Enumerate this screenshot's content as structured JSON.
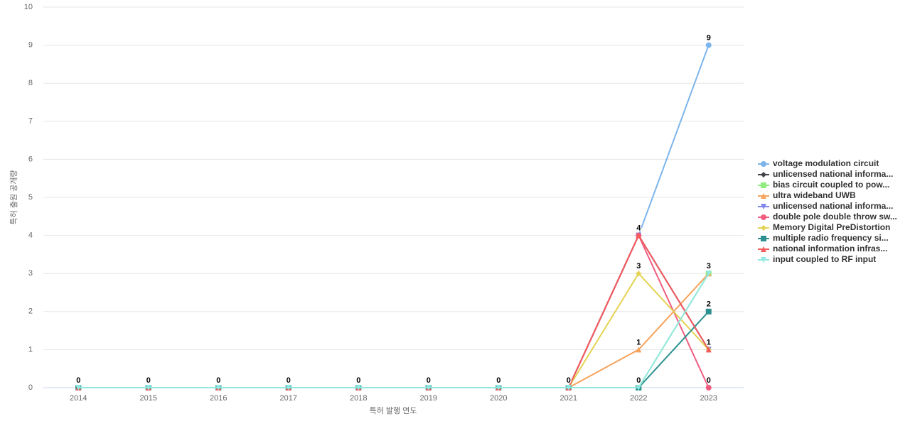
{
  "chart_data": {
    "type": "line",
    "x_label": "특허 발행 연도",
    "y_label": "특허 출원 공개량",
    "categories": [
      "2014",
      "2015",
      "2016",
      "2017",
      "2018",
      "2019",
      "2020",
      "2021",
      "2022",
      "2023"
    ],
    "ylim": [
      0,
      10
    ],
    "yticks": [
      0,
      1,
      2,
      3,
      4,
      5,
      6,
      7,
      8,
      9,
      10
    ],
    "grid": true,
    "legend": "right",
    "series": [
      {
        "name": "voltage modulation circuit",
        "color": "#7cb5ec",
        "symbol": "circle",
        "values": [
          0,
          0,
          0,
          0,
          0,
          0,
          0,
          0,
          4,
          9
        ]
      },
      {
        "name": "unlicensed national informa...",
        "color": "#434348",
        "symbol": "diamond",
        "values": [
          0,
          0,
          0,
          0,
          0,
          0,
          0,
          0,
          4,
          1
        ]
      },
      {
        "name": "bias circuit coupled to pow...",
        "color": "#90ed7d",
        "symbol": "square",
        "values": [
          0,
          0,
          0,
          0,
          0,
          0,
          0,
          0,
          0,
          3
        ]
      },
      {
        "name": "ultra wideband UWB",
        "color": "#f7a35c",
        "symbol": "triangle",
        "values": [
          0,
          0,
          0,
          0,
          0,
          0,
          0,
          0,
          1,
          3
        ]
      },
      {
        "name": "unlicensed national informa...",
        "color": "#8085e9",
        "symbol": "triangle-down",
        "values": [
          0,
          0,
          0,
          0,
          0,
          0,
          0,
          0,
          4,
          1
        ]
      },
      {
        "name": "double pole double throw sw...",
        "color": "#f15c80",
        "symbol": "circle",
        "values": [
          0,
          0,
          0,
          0,
          0,
          0,
          0,
          0,
          4,
          0
        ]
      },
      {
        "name": "Memory Digital PreDistortion",
        "color": "#e4d354",
        "symbol": "diamond",
        "values": [
          0,
          0,
          0,
          0,
          0,
          0,
          0,
          0,
          3,
          1
        ]
      },
      {
        "name": "multiple radio frequency si...",
        "color": "#2b908f",
        "symbol": "square",
        "values": [
          0,
          0,
          0,
          0,
          0,
          0,
          0,
          0,
          0,
          2
        ]
      },
      {
        "name": "national information infras...",
        "color": "#f45b5b",
        "symbol": "triangle",
        "values": [
          0,
          0,
          0,
          0,
          0,
          0,
          0,
          0,
          4,
          1
        ]
      },
      {
        "name": "input coupled to RF input",
        "color": "#91e8e1",
        "symbol": "triangle-down",
        "values": [
          0,
          0,
          0,
          0,
          0,
          0,
          0,
          0,
          0,
          3
        ]
      }
    ]
  }
}
